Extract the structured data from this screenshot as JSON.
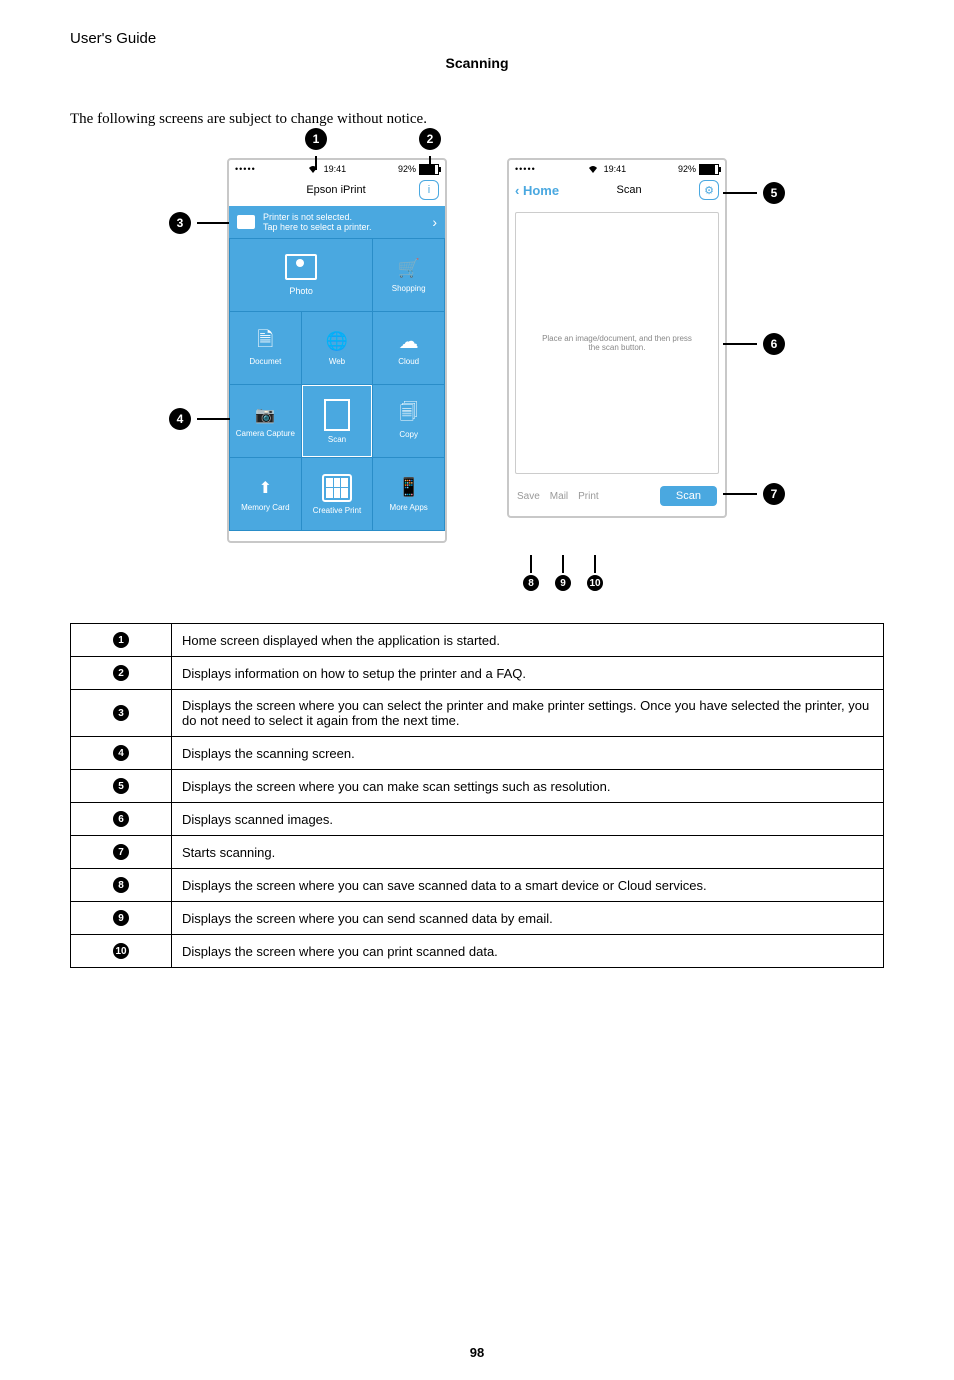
{
  "guide": "User's Guide",
  "section": "Scanning",
  "intro": "The following screens are subject to change without notice.",
  "page_number": "98",
  "status": {
    "time": "19:41",
    "battery": "92%"
  },
  "home_screen": {
    "title": "Epson iPrint",
    "printer_line1": "Printer is not selected.",
    "printer_line2": "Tap here to select a printer.",
    "tiles": {
      "photo": "Photo",
      "shopping": "Shopping",
      "document": "Documet",
      "web": "Web",
      "cloud": "Cloud",
      "camera": "Camera Capture",
      "scan": "Scan",
      "copy": "Copy",
      "memory": "Memory Card",
      "creative": "Creative Print",
      "more": "More Apps"
    }
  },
  "scan_screen": {
    "home_label": "Home",
    "title": "Scan",
    "placeholder": "Place an image/document, and then press the scan button.",
    "save": "Save",
    "mail": "Mail",
    "print": "Print",
    "scan_btn": "Scan"
  },
  "callouts": {
    "1": "1",
    "2": "2",
    "3": "3",
    "4": "4",
    "5": "5",
    "6": "6",
    "7": "7",
    "8": "8",
    "9": "9",
    "10": "10"
  },
  "table": [
    "Home screen displayed when the application is started.",
    "Displays information on how to setup the printer and a FAQ.",
    "Displays the screen where you can select the printer and make printer settings. Once you have selected the printer, you do not need to select it again from the next time.",
    "Displays the scanning screen.",
    "Displays the screen where you can make scan settings such as resolution.",
    "Displays scanned images.",
    "Starts scanning.",
    "Displays the screen where you can save scanned data to a smart device or Cloud services.",
    "Displays the screen where you can send scanned data by email.",
    "Displays the screen where you can print scanned data."
  ]
}
